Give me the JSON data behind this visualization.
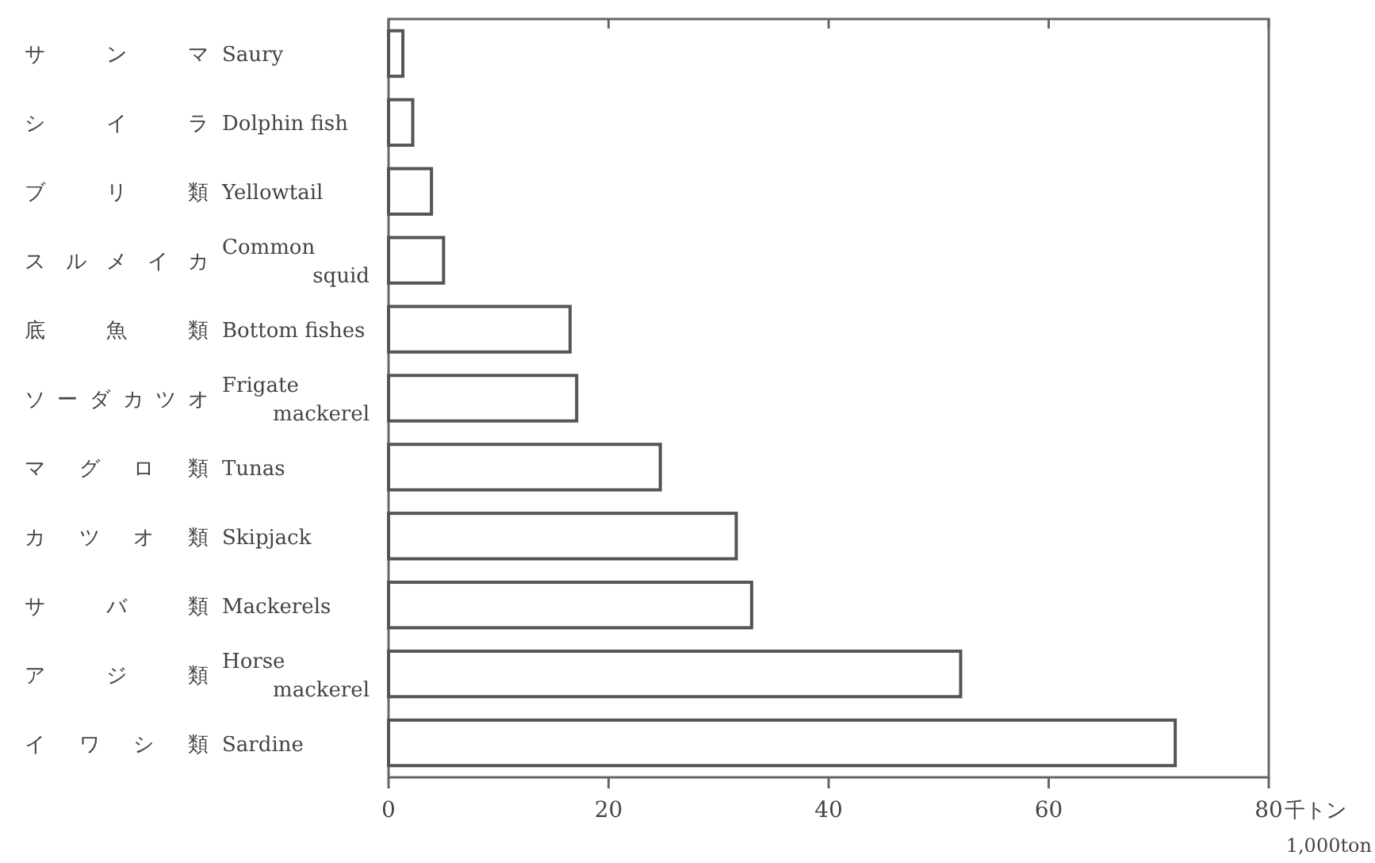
{
  "chart_data": {
    "type": "bar",
    "orientation": "horizontal",
    "categories": [
      "サンマ Saury",
      "シイラ Dolphin fish",
      "ブリ類 Yellowtail",
      "スルメイカ Common\nsquid",
      "底魚類 Bottom fishes",
      "ソーダカツオ Frigate\nmackerel",
      "マグロ類 Tunas",
      "カツオ類 Skipjack",
      "サバ類 Mackerels",
      "アジ類 Horse\nmackerel",
      "イワシ類 Sardine"
    ],
    "values": [
      1.3,
      2.2,
      3.9,
      5,
      16.5,
      17.1,
      24.7,
      31.6,
      33,
      52,
      71.5
    ],
    "color": "#ffffff",
    "xlabel": "千トン\n1,000ton",
    "xlim": [
      0,
      80
    ],
    "xticks": [
      0,
      20,
      40,
      60,
      80
    ],
    "grid": false
  }
}
